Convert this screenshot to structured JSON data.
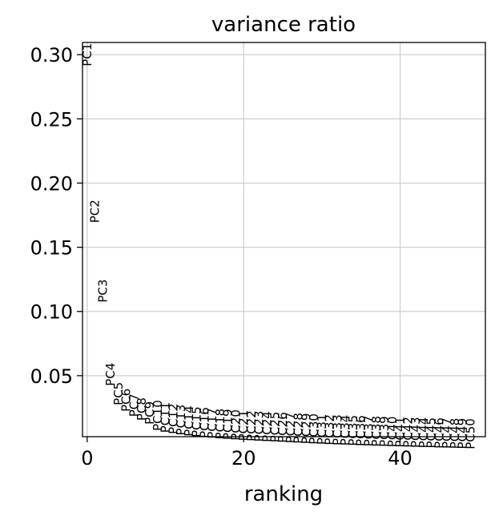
{
  "chart_data": {
    "type": "scatter",
    "title": "variance ratio",
    "xlabel": "ranking",
    "ylabel": "",
    "xlim": [
      -0.6,
      50.9
    ],
    "ylim": [
      0.0025,
      0.3095
    ],
    "grid": true,
    "x_ticks": [
      0,
      20,
      40
    ],
    "y_ticks": [
      0.05,
      0.1,
      0.15,
      0.2,
      0.25,
      0.3
    ],
    "y_tick_labels": [
      "0.05",
      "0.10",
      "0.15",
      "0.20",
      "0.25",
      "0.30"
    ],
    "x_tick_labels": [
      "0",
      "20",
      "40"
    ],
    "points": [
      {
        "label": "PC1",
        "x": 0,
        "y": 0.3
      },
      {
        "label": "PC2",
        "x": 1,
        "y": 0.178
      },
      {
        "label": "PC3",
        "x": 2,
        "y": 0.116
      },
      {
        "label": "PC4",
        "x": 3,
        "y": 0.051
      },
      {
        "label": "PC5",
        "x": 4,
        "y": 0.036
      },
      {
        "label": "PC6",
        "x": 5,
        "y": 0.031
      },
      {
        "label": "PC7",
        "x": 6,
        "y": 0.027
      },
      {
        "label": "PC8",
        "x": 7,
        "y": 0.024
      },
      {
        "label": "PC9",
        "x": 8,
        "y": 0.021
      },
      {
        "label": "PC10",
        "x": 9,
        "y": 0.019
      },
      {
        "label": "PC11",
        "x": 10,
        "y": 0.0175
      },
      {
        "label": "PC12",
        "x": 11,
        "y": 0.0165
      },
      {
        "label": "PC13",
        "x": 12,
        "y": 0.0155
      },
      {
        "label": "PC14",
        "x": 13,
        "y": 0.0147
      },
      {
        "label": "PC15",
        "x": 14,
        "y": 0.014
      },
      {
        "label": "PC16",
        "x": 15,
        "y": 0.0134
      },
      {
        "label": "PC17",
        "x": 16,
        "y": 0.0129
      },
      {
        "label": "PC18",
        "x": 17,
        "y": 0.0124
      },
      {
        "label": "PC19",
        "x": 18,
        "y": 0.012
      },
      {
        "label": "PC20",
        "x": 19,
        "y": 0.0116
      },
      {
        "label": "PC21",
        "x": 20,
        "y": 0.0112
      },
      {
        "label": "PC22",
        "x": 21,
        "y": 0.0109
      },
      {
        "label": "PC23",
        "x": 22,
        "y": 0.0106
      },
      {
        "label": "PC24",
        "x": 23,
        "y": 0.0103
      },
      {
        "label": "PC25",
        "x": 24,
        "y": 0.01
      },
      {
        "label": "PC26",
        "x": 25,
        "y": 0.0097
      },
      {
        "label": "PC27",
        "x": 26,
        "y": 0.0094
      },
      {
        "label": "PC28",
        "x": 27,
        "y": 0.0091
      },
      {
        "label": "PC29",
        "x": 28,
        "y": 0.0088
      },
      {
        "label": "PC30",
        "x": 29,
        "y": 0.0085
      },
      {
        "label": "PC31",
        "x": 30,
        "y": 0.0082
      },
      {
        "label": "PC32",
        "x": 31,
        "y": 0.0079
      },
      {
        "label": "PC33",
        "x": 32,
        "y": 0.0077
      },
      {
        "label": "PC34",
        "x": 33,
        "y": 0.0075
      },
      {
        "label": "PC35",
        "x": 34,
        "y": 0.0073
      },
      {
        "label": "PC36",
        "x": 35,
        "y": 0.0071
      },
      {
        "label": "PC37",
        "x": 36,
        "y": 0.0069
      },
      {
        "label": "PC38",
        "x": 37,
        "y": 0.0067
      },
      {
        "label": "PC39",
        "x": 38,
        "y": 0.0065
      },
      {
        "label": "PC40",
        "x": 39,
        "y": 0.0063
      },
      {
        "label": "PC41",
        "x": 40,
        "y": 0.0061
      },
      {
        "label": "PC42",
        "x": 41,
        "y": 0.006
      },
      {
        "label": "PC43",
        "x": 42,
        "y": 0.0058
      },
      {
        "label": "PC44",
        "x": 43,
        "y": 0.0056
      },
      {
        "label": "PC45",
        "x": 44,
        "y": 0.0055
      },
      {
        "label": "PC46",
        "x": 45,
        "y": 0.0053
      },
      {
        "label": "PC47",
        "x": 46,
        "y": 0.0052
      },
      {
        "label": "PC48",
        "x": 47,
        "y": 0.005
      },
      {
        "label": "PC49",
        "x": 48,
        "y": 0.0049
      },
      {
        "label": "PC50",
        "x": 49,
        "y": 0.0047
      }
    ]
  },
  "colors": {
    "grid": "#cfcfcf",
    "axes": "#000000",
    "text": "#000000",
    "background": "#ffffff"
  }
}
